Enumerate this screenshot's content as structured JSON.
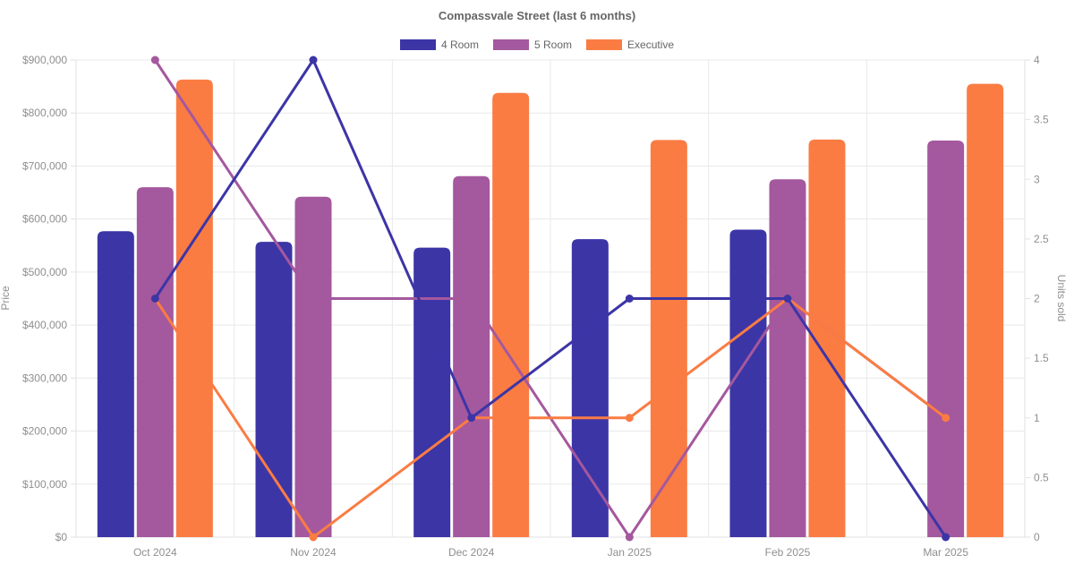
{
  "chart_data": {
    "type": "combo-bar-line",
    "title": "Compassvale Street (last 6 months)",
    "legend_position": "top",
    "grid": "horizontal-per-100k-and-category-boundaries",
    "categories": [
      "Oct 2024",
      "Nov 2024",
      "Dec 2024",
      "Jan 2025",
      "Feb 2025",
      "Mar 2025"
    ],
    "y_left": {
      "title": "Price",
      "min": 0,
      "max": 900000,
      "tick_step": 100000,
      "tick_prefix": "$"
    },
    "y_right": {
      "title": "Units sold",
      "min": 0,
      "max": 4,
      "tick_step": 0.5
    },
    "series": [
      {
        "name": "4 Room",
        "color": "#3c35a6",
        "bar_prices": [
          577000,
          557000,
          546000,
          562000,
          580000,
          null
        ],
        "line_units": [
          2,
          4,
          1,
          2,
          2,
          0
        ]
      },
      {
        "name": "5 Room",
        "color": "#a4589e",
        "bar_prices": [
          660000,
          642000,
          681000,
          null,
          675000,
          748000
        ],
        "line_units": [
          4,
          2,
          2,
          0,
          2,
          1
        ]
      },
      {
        "name": "Executive",
        "color": "#fa7c43",
        "bar_prices": [
          863000,
          null,
          838000,
          749000,
          750000,
          855000
        ],
        "line_units": [
          2,
          0,
          1,
          1,
          2,
          1
        ]
      }
    ],
    "colors": {
      "grid": "#e9e9e9",
      "axis_border": "#e2e2e2",
      "tick_text": "#8f8f8f",
      "title_text": "#666666"
    }
  }
}
